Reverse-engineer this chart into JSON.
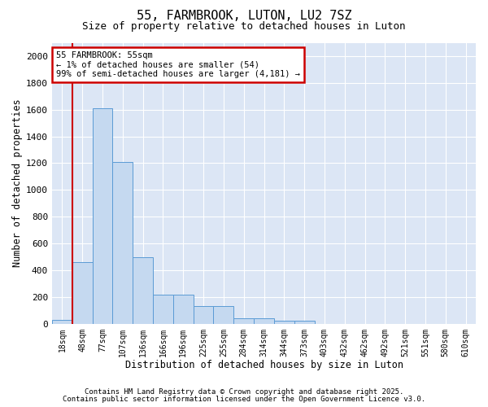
{
  "title1": "55, FARMBROOK, LUTON, LU2 7SZ",
  "title2": "Size of property relative to detached houses in Luton",
  "xlabel": "Distribution of detached houses by size in Luton",
  "ylabel": "Number of detached properties",
  "categories": [
    "18sqm",
    "48sqm",
    "77sqm",
    "107sqm",
    "136sqm",
    "166sqm",
    "196sqm",
    "225sqm",
    "255sqm",
    "284sqm",
    "314sqm",
    "344sqm",
    "373sqm",
    "403sqm",
    "432sqm",
    "462sqm",
    "492sqm",
    "521sqm",
    "551sqm",
    "580sqm",
    "610sqm"
  ],
  "values": [
    30,
    460,
    1610,
    1210,
    500,
    215,
    215,
    130,
    130,
    40,
    40,
    20,
    20,
    0,
    0,
    0,
    0,
    0,
    0,
    0,
    0
  ],
  "bar_color": "#c5d9f0",
  "bar_edge_color": "#5b9bd5",
  "vline_color": "#cc0000",
  "annotation_line1": "55 FARMBROOK: 55sqm",
  "annotation_line2": "← 1% of detached houses are smaller (54)",
  "annotation_line3": "99% of semi-detached houses are larger (4,181) →",
  "annotation_box_color": "#cc0000",
  "annotation_box_bg": "#ffffff",
  "ylim": [
    0,
    2100
  ],
  "yticks": [
    0,
    200,
    400,
    600,
    800,
    1000,
    1200,
    1400,
    1600,
    1800,
    2000
  ],
  "bg_color": "#dce6f5",
  "footer1": "Contains HM Land Registry data © Crown copyright and database right 2025.",
  "footer2": "Contains public sector information licensed under the Open Government Licence v3.0."
}
